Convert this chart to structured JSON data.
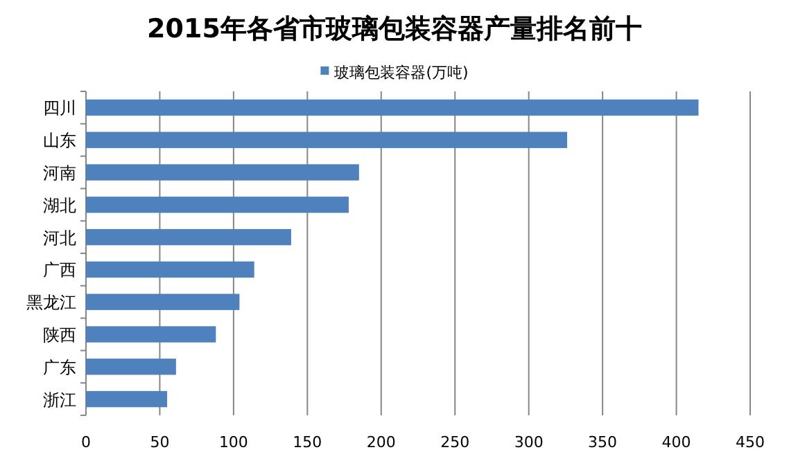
{
  "chart_data": {
    "type": "bar",
    "orientation": "horizontal",
    "title": "2015年各省市玻璃包装容器产量排名前十",
    "categories": [
      "四川",
      "山东",
      "河南",
      "湖北",
      "河北",
      "广西",
      "黑龙江",
      "陕西",
      "广东",
      "浙江"
    ],
    "series": [
      {
        "name": "玻璃包装容器(万吨)",
        "color": "#4f81bd",
        "values": [
          415,
          326,
          185,
          178,
          139,
          114,
          104,
          88,
          61,
          55
        ]
      }
    ],
    "xlim": [
      0,
      450
    ],
    "xticks": [
      0,
      50,
      100,
      150,
      200,
      250,
      300,
      350,
      400,
      450
    ],
    "grid": "x",
    "legend": "top"
  }
}
